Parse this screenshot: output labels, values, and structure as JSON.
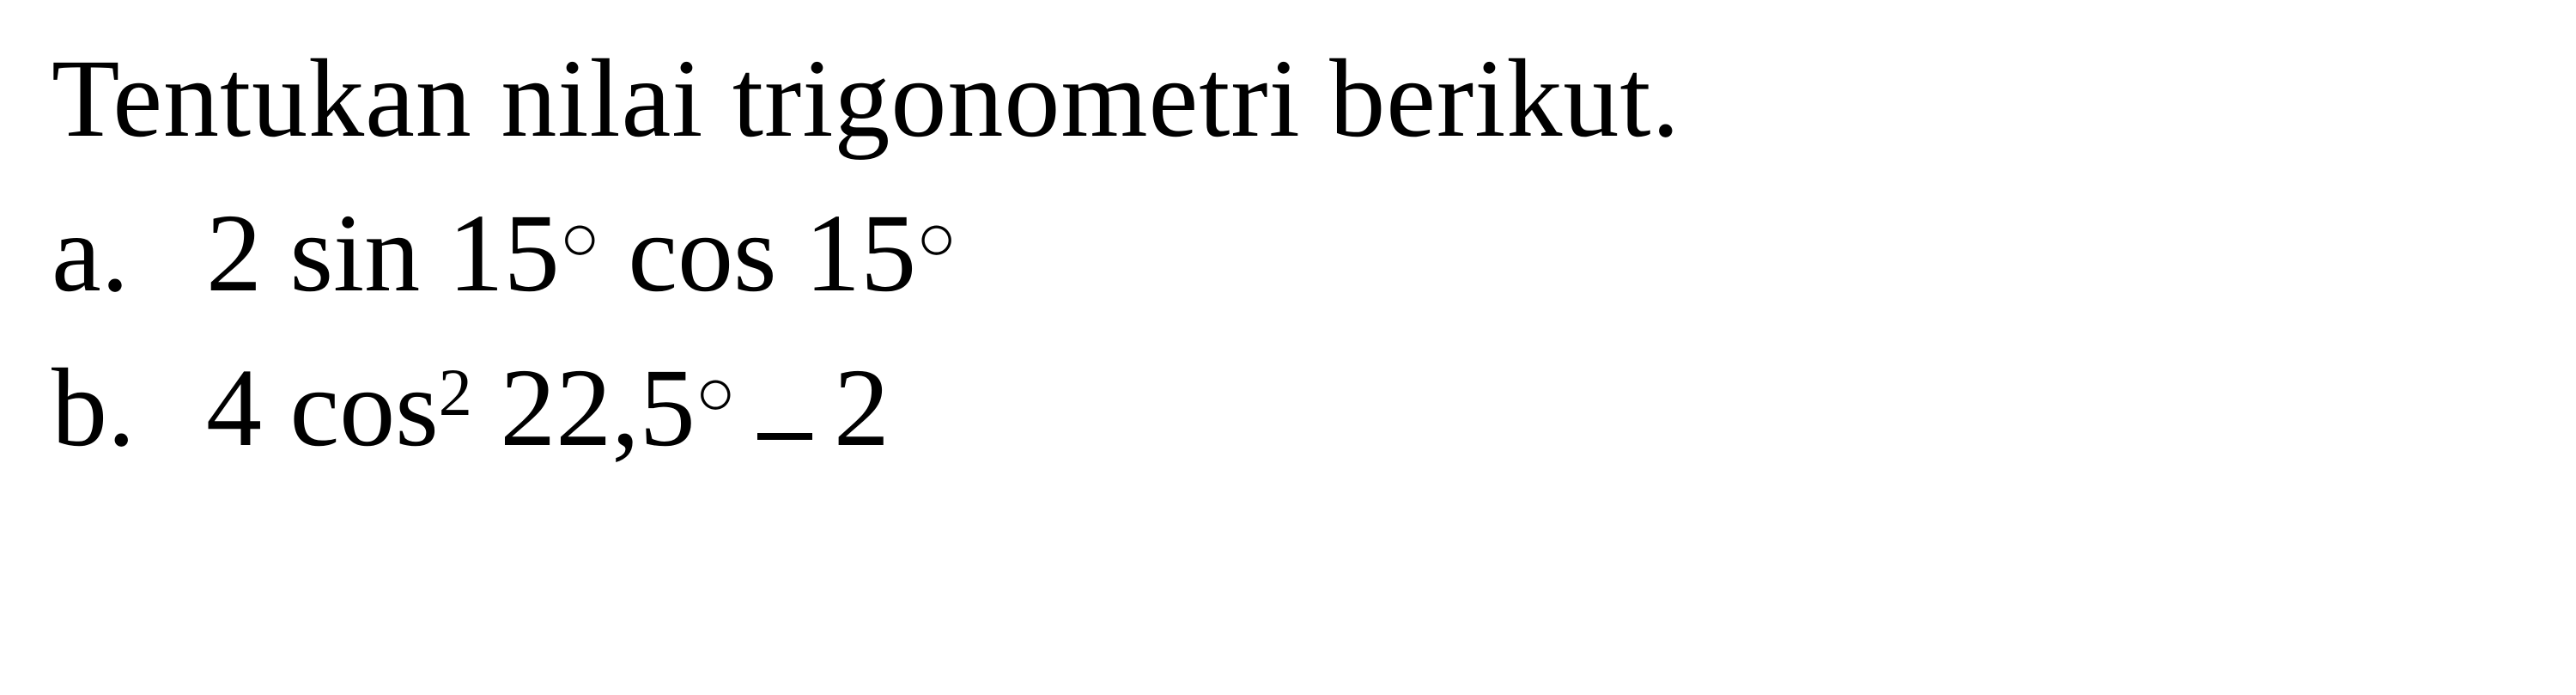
{
  "title": "Tentukan nilai trigonometri berikut.",
  "items": {
    "a": {
      "label": "a.",
      "coef": "2",
      "func1": "sin",
      "angle1": "15",
      "func2": "cos",
      "angle2": "15"
    },
    "b": {
      "label": "b.",
      "coef": "4",
      "func": "cos",
      "exp": "2",
      "angle": "22,5",
      "const": "2"
    }
  },
  "styling": {
    "background_color": "#ffffff",
    "text_color": "#000000",
    "font_family": "Times New Roman",
    "title_fontsize": 130,
    "item_fontsize": 130,
    "degree_fontsize": 78,
    "exponent_fontsize": 78,
    "container_width": 3000,
    "container_height": 809
  }
}
